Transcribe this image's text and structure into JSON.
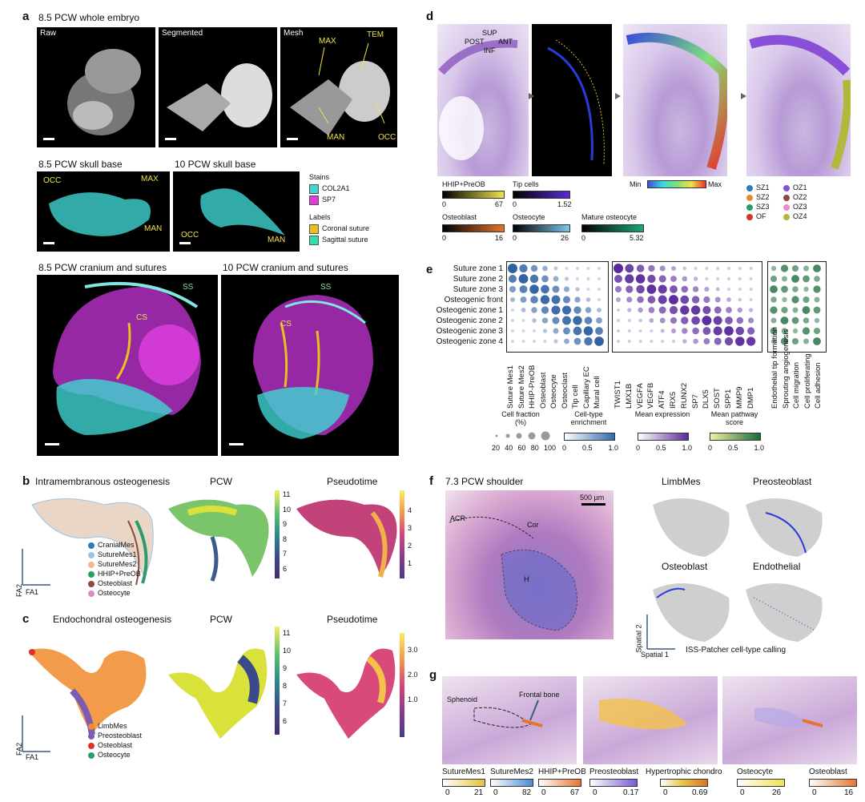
{
  "a": {
    "panel": "a",
    "header": "8.5 PCW whole embryo",
    "raw": "Raw",
    "segmented": "Segmented",
    "mesh": "Mesh",
    "mesh_labels": [
      "MAX",
      "TEM",
      "MAN",
      "OCC"
    ],
    "skull85": "8.5 PCW skull base",
    "skull10": "10 PCW skull base",
    "skull_labels": {
      "occ": "OCC",
      "max": "MAX",
      "man": "MAN"
    },
    "stains_title": "Stains",
    "stain1": "COL2A1",
    "stain2": "SP7",
    "labels_title": "Labels",
    "label1": "Coronal suture",
    "label2": "Sagittal suture",
    "cran85": "8.5 PCW cranium and sutures",
    "cran10": "10 PCW cranium and sutures",
    "ss": "SS",
    "cs": "CS",
    "colors": {
      "col2a1": "#3fd6d2",
      "sp7": "#e33ce3",
      "coronal": "#e8c21a",
      "sagittal": "#2fe0b0"
    }
  },
  "b": {
    "panel": "b",
    "title": "Intramembranous osteogenesis",
    "pcw": "PCW",
    "pseudotime": "Pseudotime",
    "legend": [
      {
        "name": "CranialMes",
        "color": "#2e7bb8"
      },
      {
        "name": "SutureMes1",
        "color": "#9cc3e3"
      },
      {
        "name": "SutureMes2",
        "color": "#f3b98a"
      },
      {
        "name": "HHIP+PreOB",
        "color": "#2a9d6a"
      },
      {
        "name": "Osteoblast",
        "color": "#8c4a3a"
      },
      {
        "name": "Osteocyte",
        "color": "#d98cc0"
      }
    ],
    "pcw_ticks": [
      "11",
      "10",
      "9",
      "8",
      "7",
      "6"
    ],
    "pt_ticks": [
      "4",
      "3",
      "2",
      "1"
    ],
    "fa2": "FA2",
    "fa1": "FA1"
  },
  "c": {
    "panel": "c",
    "title": "Endochondral osteogenesis",
    "pcw": "PCW",
    "pseudotime": "Pseudotime",
    "legend": [
      {
        "name": "LimbMes",
        "color": "#ee8a2c"
      },
      {
        "name": "Preosteoblast",
        "color": "#7c5cb3"
      },
      {
        "name": "Osteoblast",
        "color": "#d8322a"
      },
      {
        "name": "Osteocyte",
        "color": "#2a9d6a"
      }
    ],
    "pcw_ticks": [
      "11",
      "10",
      "9",
      "8",
      "7",
      "6"
    ],
    "pt_ticks": [
      "3.0",
      "2.0",
      "1.0"
    ],
    "fa2": "FA2",
    "fa1": "FA1"
  },
  "d": {
    "panel": "d",
    "orient": {
      "sup": "SUP",
      "post": "POST",
      "ant": "ANT",
      "inf": "INF"
    },
    "scales": [
      {
        "name": "HHIP+PreOB",
        "min": "0",
        "max": "67"
      },
      {
        "name": "Tip cells",
        "min": "0",
        "max": "1.52"
      },
      {
        "name": "Osteoblast",
        "min": "0",
        "max": "16"
      },
      {
        "name": "Osteocyte",
        "min": "0",
        "max": "26"
      },
      {
        "name": "Mature osteocyte",
        "min": "0",
        "max": "5.32"
      }
    ],
    "minlabel": "Min",
    "maxlabel": "Max",
    "zones": [
      {
        "name": "SZ1",
        "color": "#2e7bb8"
      },
      {
        "name": "OZ1",
        "color": "#8a4fd8"
      },
      {
        "name": "SZ2",
        "color": "#ee8a2c"
      },
      {
        "name": "OZ2",
        "color": "#8c4a3a"
      },
      {
        "name": "SZ3",
        "color": "#2a9d6a"
      },
      {
        "name": "OZ3",
        "color": "#e98cc6"
      },
      {
        "name": "OF",
        "color": "#d8322a"
      },
      {
        "name": "OZ4",
        "color": "#b2b83c"
      }
    ]
  },
  "e": {
    "panel": "e",
    "rows": [
      "Suture zone 1",
      "Suture zone 2",
      "Suture zone 3",
      "Osteogenic front",
      "Osteogenic zone 1",
      "Osteogenic zone 2",
      "Osteogenic zone 3",
      "Osteogenic zone 4"
    ],
    "cols1": [
      "Suture Mes1",
      "Suture Mes2",
      "HHIP-PreOB",
      "Osteoblast",
      "Osteocyte",
      "Osteoclast",
      "Tip cell",
      "Capillary EC",
      "Mural cell"
    ],
    "cols2": [
      "TWIST1",
      "LMX1B",
      "VEGFA",
      "VEGFB",
      "ATF4",
      "IRX5",
      "RUNX2",
      "SP7",
      "DLX5",
      "SOST",
      "SPP1",
      "MMP9",
      "DMP1"
    ],
    "cols3": [
      "Endothelial tip formation",
      "Sprouting angiogenesis",
      "Cell migration",
      "Cell proliferating",
      "Cell adhesion"
    ],
    "size_title": "Cell fraction (%)",
    "size_ticks": [
      "20",
      "40",
      "60",
      "80",
      "100"
    ],
    "enrich_title": "Cell-type enrichment",
    "expr_title": "Mean expression",
    "path_title": "Mean pathway score",
    "ticks": [
      "0",
      "0.5",
      "1.0"
    ]
  },
  "f": {
    "panel": "f",
    "title": "7.3 PCW shoulder",
    "scalebar": "500 µm",
    "regions": {
      "acr": "ACR",
      "cor": "Cor",
      "h": "H"
    },
    "maps": [
      "LimbMes",
      "Preosteoblast",
      "Osteoblast",
      "Endothelial"
    ],
    "caption": "ISS-Patcher cell-type calling",
    "sp2": "Spatial 2",
    "sp1": "Spatial 1"
  },
  "g": {
    "panel": "g",
    "sphenoid": "Sphenoid",
    "frontal": "Frontal bone",
    "scales": [
      {
        "name": "SutureMes1",
        "min": "0",
        "max": "21"
      },
      {
        "name": "SutureMes2",
        "min": "0",
        "max": "82"
      },
      {
        "name": "HHIP+PreOB",
        "min": "0",
        "max": "67"
      },
      {
        "name": "Preosteoblast",
        "min": "0",
        "max": "0.17"
      },
      {
        "name": "Hypertrophic chondro",
        "min": "0",
        "max": "0.69"
      },
      {
        "name": "Osteocyte",
        "min": "0",
        "max": "26"
      },
      {
        "name": "Osteoblast",
        "min": "0",
        "max": "16"
      }
    ]
  }
}
